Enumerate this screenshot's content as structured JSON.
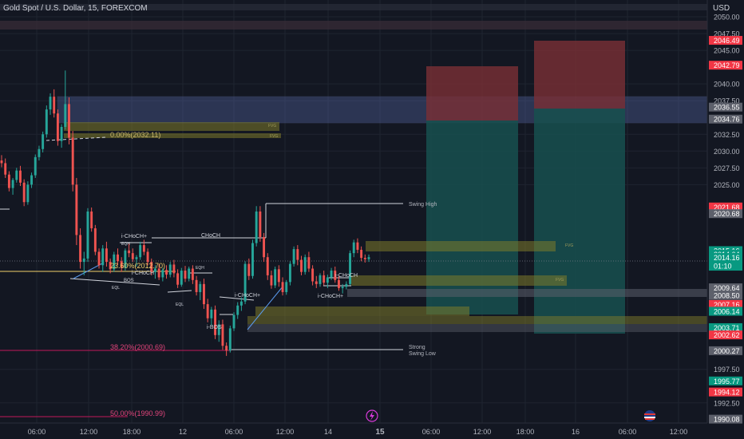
{
  "header": {
    "title": "Gold Spot / U.S. Dollar, 15, FOREXCOM",
    "currency": "USD"
  },
  "colors": {
    "background": "#131722",
    "grid": "#1f2430",
    "up": "#26a69a",
    "down": "#ef5350",
    "text": "#d1d4dc",
    "axis_text": "#b2b5be"
  },
  "chart_data": {
    "type": "candlestick",
    "ylim": [
      1989.5,
      2052.5
    ],
    "y_ticks": [
      2050.0,
      2047.5,
      2045.0,
      2040.0,
      2037.5,
      2032.5,
      2030.0,
      2027.5,
      2025.0,
      1997.5,
      1992.5
    ],
    "x_ticks": [
      "06:00",
      "12:00",
      "18:00",
      "12",
      "06:00",
      "12:00",
      "14",
      "15",
      "06:00",
      "12:00",
      "18:00",
      "16",
      "06:00",
      "12:00"
    ],
    "price_labels": [
      {
        "value": "2046.49",
        "kind": "red"
      },
      {
        "value": "2042.79",
        "kind": "red"
      },
      {
        "value": "2036.55",
        "kind": "gray"
      },
      {
        "value": "2034.76",
        "kind": "gray"
      },
      {
        "value": "2021.68",
        "kind": "red"
      },
      {
        "value": "2020.68",
        "kind": "gray"
      },
      {
        "value": "2015.18",
        "kind": "green"
      },
      {
        "value": "2015.16",
        "kind": "green"
      },
      {
        "value": "2014.64",
        "kind": "green"
      },
      {
        "value": "2014.16",
        "kind": "green"
      },
      {
        "value": "2009.64",
        "kind": "gray"
      },
      {
        "value": "2008.50",
        "kind": "gray"
      },
      {
        "value": "2007.16",
        "kind": "red"
      },
      {
        "value": "2006.25",
        "kind": "red"
      },
      {
        "value": "2006.14",
        "kind": "green"
      },
      {
        "value": "2003.71",
        "kind": "green"
      },
      {
        "value": "2002.62",
        "kind": "red"
      },
      {
        "value": "2000.27",
        "kind": "gray"
      },
      {
        "value": "1995.77",
        "kind": "green"
      },
      {
        "value": "1994.12",
        "kind": "red"
      },
      {
        "value": "1990.08",
        "kind": "gray"
      }
    ],
    "countdown": "01:10",
    "annotations": {
      "fib_0": "0.00%(2032.11)",
      "fib_236": "23.60%(2012.70)",
      "fib_382": "38.20%(2000.69)",
      "fib_50": "50.00%(1990.99)",
      "swing_high": "Swing High",
      "strong": "Strong",
      "swing_low": "Swing Low",
      "choch": "CHoCH",
      "i_choch_plus": "i-CHoCH+",
      "i_choch": "i-CHoCH",
      "i_bos": "i-BOS",
      "bos": "BOS",
      "eqh": "EQH",
      "eql": "EQL",
      "fvg": "FVG"
    },
    "candles": [
      [
        2028.6,
        2029.4,
        2027.6,
        2028.2
      ],
      [
        2028.2,
        2028.9,
        2026.0,
        2026.5
      ],
      [
        2026.5,
        2027.0,
        2024.0,
        2024.5
      ],
      [
        2024.5,
        2026.0,
        2023.5,
        2025.7
      ],
      [
        2025.7,
        2027.5,
        2025.3,
        2027.1
      ],
      [
        2027.1,
        2027.8,
        2024.8,
        2025.3
      ],
      [
        2025.3,
        2025.8,
        2021.8,
        2022.4
      ],
      [
        2022.4,
        2025.5,
        2022.0,
        2025.0
      ],
      [
        2025.0,
        2026.8,
        2024.5,
        2026.4
      ],
      [
        2026.4,
        2029.5,
        2026.0,
        2029.1
      ],
      [
        2029.1,
        2030.8,
        2028.6,
        2030.3
      ],
      [
        2030.3,
        2032.9,
        2029.8,
        2032.5
      ],
      [
        2032.5,
        2036.8,
        2032.0,
        2036.2
      ],
      [
        2036.2,
        2038.6,
        2035.4,
        2038.1
      ],
      [
        2038.1,
        2039.2,
        2035.0,
        2035.6
      ],
      [
        2035.6,
        2036.2,
        2030.8,
        2031.5
      ],
      [
        2031.5,
        2034.0,
        2030.5,
        2033.6
      ],
      [
        2033.6,
        2042.0,
        2033.2,
        2037.0
      ],
      [
        2037.0,
        2038.0,
        2031.0,
        2032.0
      ],
      [
        2032.0,
        2033.0,
        2024.0,
        2025.0
      ],
      [
        2025.0,
        2026.0,
        2016.0,
        2017.5
      ],
      [
        2017.5,
        2018.5,
        2012.5,
        2013.5
      ],
      [
        2013.5,
        2015.0,
        2011.5,
        2014.0
      ],
      [
        2014.0,
        2021.5,
        2013.5,
        2021.0
      ],
      [
        2021.0,
        2021.6,
        2018.0,
        2018.5
      ],
      [
        2018.5,
        2019.0,
        2014.5,
        2015.0
      ],
      [
        2015.0,
        2015.5,
        2012.5,
        2013.0
      ],
      [
        2013.0,
        2016.0,
        2012.0,
        2015.5
      ],
      [
        2015.5,
        2016.5,
        2012.8,
        2013.5
      ],
      [
        2013.5,
        2014.0,
        2011.8,
        2012.4
      ],
      [
        2012.4,
        2015.0,
        2012.0,
        2014.6
      ],
      [
        2014.6,
        2015.5,
        2013.0,
        2013.6
      ],
      [
        2013.6,
        2014.2,
        2012.0,
        2012.6
      ],
      [
        2012.6,
        2015.5,
        2012.2,
        2015.2
      ],
      [
        2015.2,
        2016.2,
        2014.2,
        2014.8
      ],
      [
        2014.8,
        2015.5,
        2013.5,
        2013.9
      ],
      [
        2013.9,
        2014.5,
        2012.8,
        2014.2
      ],
      [
        2014.2,
        2016.5,
        2013.8,
        2016.0
      ],
      [
        2016.0,
        2016.8,
        2014.5,
        2015.0
      ],
      [
        2015.0,
        2015.5,
        2013.0,
        2013.5
      ],
      [
        2013.5,
        2014.0,
        2011.5,
        2012.0
      ],
      [
        2012.0,
        2013.0,
        2011.0,
        2012.5
      ],
      [
        2012.5,
        2013.2,
        2010.8,
        2011.2
      ],
      [
        2011.2,
        2012.6,
        2010.6,
        2012.3
      ],
      [
        2012.3,
        2013.0,
        2011.0,
        2011.6
      ],
      [
        2011.6,
        2013.5,
        2011.2,
        2013.1
      ],
      [
        2013.1,
        2013.8,
        2011.2,
        2011.8
      ],
      [
        2011.8,
        2012.4,
        2009.6,
        2010.1
      ],
      [
        2010.1,
        2012.6,
        2009.8,
        2012.2
      ],
      [
        2012.2,
        2012.9,
        2010.5,
        2011.0
      ],
      [
        2011.0,
        2012.8,
        2010.6,
        2012.5
      ],
      [
        2012.5,
        2013.0,
        2010.2,
        2010.8
      ],
      [
        2010.8,
        2011.4,
        2008.5,
        2009.0
      ],
      [
        2009.0,
        2010.6,
        2007.8,
        2010.2
      ],
      [
        2010.2,
        2011.0,
        2006.5,
        2007.2
      ],
      [
        2007.2,
        2008.0,
        2004.5,
        2005.1
      ],
      [
        2005.1,
        2006.8,
        2004.0,
        2006.4
      ],
      [
        2006.4,
        2007.0,
        2002.0,
        2002.6
      ],
      [
        2002.6,
        2004.8,
        2001.6,
        2004.2
      ],
      [
        2004.2,
        2004.9,
        2000.4,
        2001.0
      ],
      [
        2001.0,
        2001.5,
        1999.5,
        2000.3
      ],
      [
        2000.3,
        2004.0,
        2000.0,
        2003.6
      ],
      [
        2003.6,
        2006.0,
        2003.2,
        2005.6
      ],
      [
        2005.6,
        2007.5,
        2005.0,
        2007.0
      ],
      [
        2007.0,
        2008.2,
        2006.2,
        2007.6
      ],
      [
        2007.6,
        2013.6,
        2007.2,
        2013.2
      ],
      [
        2013.2,
        2014.0,
        2010.8,
        2011.4
      ],
      [
        2011.4,
        2016.8,
        2011.0,
        2016.3
      ],
      [
        2016.3,
        2021.8,
        2015.8,
        2021.0
      ],
      [
        2021.0,
        2021.8,
        2016.5,
        2017.2
      ],
      [
        2017.2,
        2017.8,
        2013.5,
        2014.2
      ],
      [
        2014.2,
        2014.8,
        2010.8,
        2011.5
      ],
      [
        2011.5,
        2012.2,
        2009.5,
        2010.0
      ],
      [
        2010.0,
        2012.8,
        2009.6,
        2012.4
      ],
      [
        2012.4,
        2013.0,
        2009.8,
        2010.5
      ],
      [
        2010.5,
        2011.2,
        2008.5,
        2009.0
      ],
      [
        2009.0,
        2010.8,
        2008.6,
        2010.5
      ],
      [
        2010.5,
        2013.6,
        2010.0,
        2013.2
      ],
      [
        2013.2,
        2015.8,
        2012.8,
        2015.4
      ],
      [
        2015.4,
        2016.0,
        2013.0,
        2013.8
      ],
      [
        2013.8,
        2014.4,
        2011.5,
        2012.0
      ],
      [
        2012.0,
        2014.6,
        2011.6,
        2014.2
      ],
      [
        2014.2,
        2015.0,
        2012.0,
        2012.5
      ],
      [
        2012.5,
        2013.0,
        2010.0,
        2010.6
      ],
      [
        2010.6,
        2011.4,
        2009.6,
        2010.2
      ],
      [
        2010.2,
        2011.8,
        2009.8,
        2011.5
      ],
      [
        2011.5,
        2012.2,
        2010.0,
        2010.4
      ],
      [
        2010.4,
        2011.6,
        2009.6,
        2011.2
      ],
      [
        2011.2,
        2012.6,
        2010.8,
        2012.2
      ],
      [
        2012.2,
        2012.8,
        2010.4,
        2010.8
      ],
      [
        2010.8,
        2011.4,
        2009.2,
        2009.6
      ],
      [
        2009.6,
        2010.2,
        2008.8,
        2009.8
      ],
      [
        2009.8,
        2010.6,
        2009.4,
        2010.2
      ],
      [
        2010.2,
        2015.2,
        2010.0,
        2014.8
      ],
      [
        2014.8,
        2016.8,
        2014.2,
        2016.4
      ],
      [
        2016.4,
        2017.0,
        2014.8,
        2015.3
      ],
      [
        2015.3,
        2015.8,
        2013.6,
        2014.1
      ],
      [
        2014.1,
        2014.6,
        2013.4,
        2013.9
      ],
      [
        2013.9,
        2014.6,
        2013.5,
        2014.2
      ]
    ]
  }
}
